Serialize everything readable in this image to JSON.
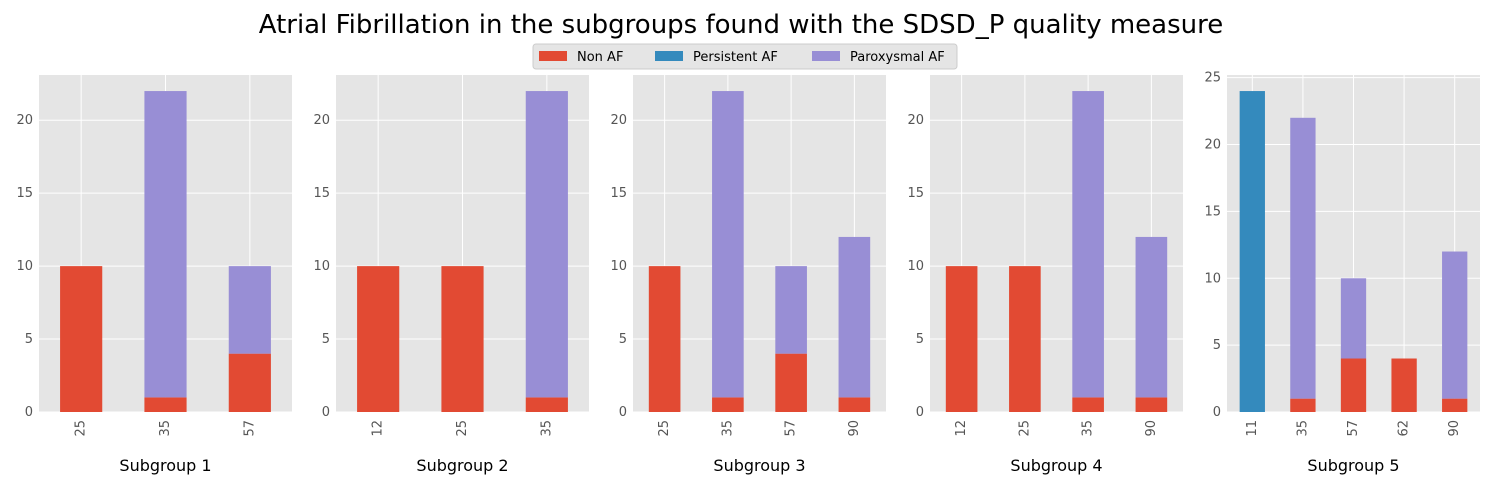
{
  "title": "Atrial Fibrillation in the subgroups found with the SDSD_P quality measure",
  "colors": {
    "Non AF": "#e24a33",
    "Persistent AF": "#348abd",
    "Paroxysmal AF": "#988ed5",
    "panel_bg": "#e5e5e5",
    "grid": "#ffffff",
    "tick_text": "#555555"
  },
  "legend": {
    "placement": "top-center",
    "entries": [
      "Non AF",
      "Persistent AF",
      "Paroxysmal AF"
    ]
  },
  "chart_data": [
    {
      "type": "bar",
      "stacked": true,
      "xlabel": "Subgroup 1",
      "ylabel": "",
      "ylim": [
        0,
        23.1
      ],
      "yticks": [
        0,
        5,
        10,
        15,
        20
      ],
      "grid": true,
      "categories": [
        "25",
        "35",
        "57"
      ],
      "series": [
        {
          "name": "Non AF",
          "values": [
            10,
            1,
            4
          ]
        },
        {
          "name": "Persistent AF",
          "values": [
            0,
            0,
            0
          ]
        },
        {
          "name": "Paroxysmal AF",
          "values": [
            0,
            21,
            6
          ]
        }
      ]
    },
    {
      "type": "bar",
      "stacked": true,
      "xlabel": "Subgroup 2",
      "ylabel": "",
      "ylim": [
        0,
        23.1
      ],
      "yticks": [
        0,
        5,
        10,
        15,
        20
      ],
      "grid": true,
      "categories": [
        "12",
        "25",
        "35"
      ],
      "series": [
        {
          "name": "Non AF",
          "values": [
            10,
            10,
            1
          ]
        },
        {
          "name": "Persistent AF",
          "values": [
            0,
            0,
            0
          ]
        },
        {
          "name": "Paroxysmal AF",
          "values": [
            0,
            0,
            21
          ]
        }
      ]
    },
    {
      "type": "bar",
      "stacked": true,
      "xlabel": "Subgroup 3",
      "ylabel": "",
      "ylim": [
        0,
        23.1
      ],
      "yticks": [
        0,
        5,
        10,
        15,
        20
      ],
      "grid": true,
      "categories": [
        "25",
        "35",
        "57",
        "90"
      ],
      "series": [
        {
          "name": "Non AF",
          "values": [
            10,
            1,
            4,
            1
          ]
        },
        {
          "name": "Persistent AF",
          "values": [
            0,
            0,
            0,
            0
          ]
        },
        {
          "name": "Paroxysmal AF",
          "values": [
            0,
            21,
            6,
            11
          ]
        }
      ]
    },
    {
      "type": "bar",
      "stacked": true,
      "xlabel": "Subgroup 4",
      "ylabel": "",
      "ylim": [
        0,
        23.1
      ],
      "yticks": [
        0,
        5,
        10,
        15,
        20
      ],
      "grid": true,
      "categories": [
        "12",
        "25",
        "35",
        "90"
      ],
      "series": [
        {
          "name": "Non AF",
          "values": [
            10,
            10,
            1,
            1
          ]
        },
        {
          "name": "Persistent AF",
          "values": [
            0,
            0,
            0,
            0
          ]
        },
        {
          "name": "Paroxysmal AF",
          "values": [
            0,
            0,
            21,
            11
          ]
        }
      ]
    },
    {
      "type": "bar",
      "stacked": true,
      "xlabel": "Subgroup 5",
      "ylabel": "",
      "ylim": [
        0,
        25.2
      ],
      "yticks": [
        0,
        5,
        10,
        15,
        20,
        25
      ],
      "grid": true,
      "categories": [
        "11",
        "35",
        "57",
        "62",
        "90"
      ],
      "series": [
        {
          "name": "Non AF",
          "values": [
            0,
            1,
            4,
            4,
            1
          ]
        },
        {
          "name": "Persistent AF",
          "values": [
            24,
            0,
            0,
            0,
            0
          ]
        },
        {
          "name": "Paroxysmal AF",
          "values": [
            0,
            21,
            6,
            0,
            11
          ]
        }
      ]
    }
  ]
}
